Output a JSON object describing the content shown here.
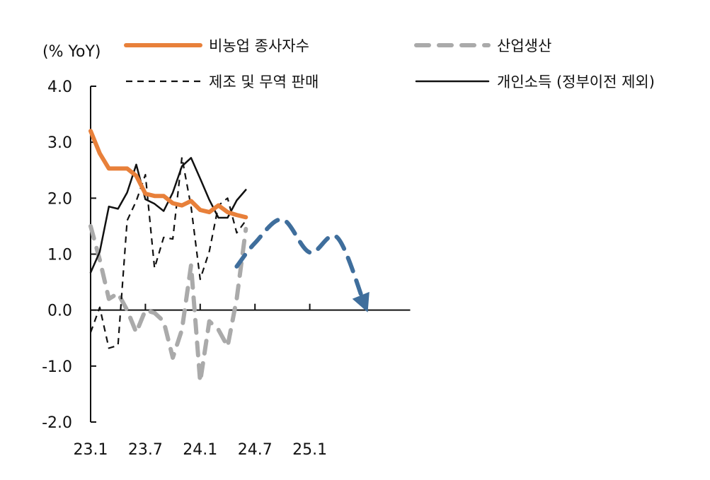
{
  "chart_data": {
    "type": "line",
    "unit_label": "(% YoY)",
    "ylim": [
      -2.0,
      4.0
    ],
    "y_ticks": [
      "4.0",
      "3.0",
      "2.0",
      "1.0",
      "0.0",
      "-1.0",
      "-2.0"
    ],
    "x_tick_labels": [
      "23.1",
      "23.7",
      "24.1",
      "24.7",
      "25.1"
    ],
    "x_range": [
      "23.1",
      "25.12"
    ],
    "grid": false,
    "legend_position": "top",
    "series": [
      {
        "name": "비농업 종사자수",
        "color": "#E8803A",
        "style": "solid-thick",
        "x": [
          "23.1",
          "23.2",
          "23.3",
          "23.4",
          "23.5",
          "23.6",
          "23.7",
          "23.8",
          "23.9",
          "23.10",
          "23.11",
          "23.12",
          "24.1",
          "24.2",
          "24.3",
          "24.4",
          "24.5",
          "24.6"
        ],
        "values": [
          3.2,
          2.8,
          2.53,
          2.53,
          2.53,
          2.4,
          2.08,
          2.04,
          2.04,
          1.91,
          1.87,
          1.95,
          1.79,
          1.75,
          1.87,
          1.75,
          1.7,
          1.66
        ]
      },
      {
        "name": "산업생산",
        "color": "#AAAAAA",
        "style": "dashed-thick",
        "x": [
          "23.1",
          "23.2",
          "23.3",
          "23.4",
          "23.5",
          "23.6",
          "23.7",
          "23.8",
          "23.9",
          "23.10",
          "23.11",
          "23.12",
          "24.1",
          "24.2",
          "24.3",
          "24.4",
          "24.5",
          "24.6"
        ],
        "values": [
          1.5,
          0.9,
          0.2,
          0.3,
          0.0,
          -0.4,
          0.0,
          -0.05,
          -0.2,
          -0.85,
          -0.35,
          0.8,
          -1.28,
          -0.2,
          -0.35,
          -0.65,
          0.2,
          1.45
        ]
      },
      {
        "name": "제조 및 무역 판매",
        "color": "#111111",
        "style": "dashed-thin",
        "x": [
          "23.1",
          "23.2",
          "23.3",
          "23.4",
          "23.5",
          "23.6",
          "23.7",
          "23.8",
          "23.9",
          "23.10",
          "23.11",
          "23.12",
          "24.1",
          "24.2",
          "24.3",
          "24.4",
          "24.5",
          "24.6"
        ],
        "values": [
          -0.4,
          0.05,
          -0.68,
          -0.63,
          1.6,
          1.95,
          2.42,
          0.75,
          1.3,
          1.27,
          2.73,
          1.85,
          0.55,
          1.05,
          1.87,
          2.0,
          1.38,
          1.6
        ]
      },
      {
        "name": "개인소득 (정부이전 제외)",
        "color": "#111111",
        "style": "solid-thin",
        "x": [
          "23.1",
          "23.2",
          "23.3",
          "23.4",
          "23.5",
          "23.6",
          "23.7",
          "23.8",
          "23.9",
          "23.10",
          "23.11",
          "23.12",
          "24.1",
          "24.2",
          "24.3",
          "24.4",
          "24.5",
          "24.6"
        ],
        "values": [
          0.67,
          1.04,
          1.85,
          1.81,
          2.1,
          2.6,
          1.98,
          1.9,
          1.77,
          2.1,
          2.57,
          2.72,
          2.35,
          1.97,
          1.65,
          1.65,
          1.96,
          2.15
        ]
      }
    ],
    "projection": {
      "color": "#3F6E9C",
      "style": "dashed-arrow",
      "x": [
        "24.5",
        "24.7",
        "24.10",
        "25.1",
        "25.4",
        "25.7"
      ],
      "values": [
        0.78,
        1.2,
        1.62,
        1.03,
        1.3,
        0.1
      ]
    }
  }
}
